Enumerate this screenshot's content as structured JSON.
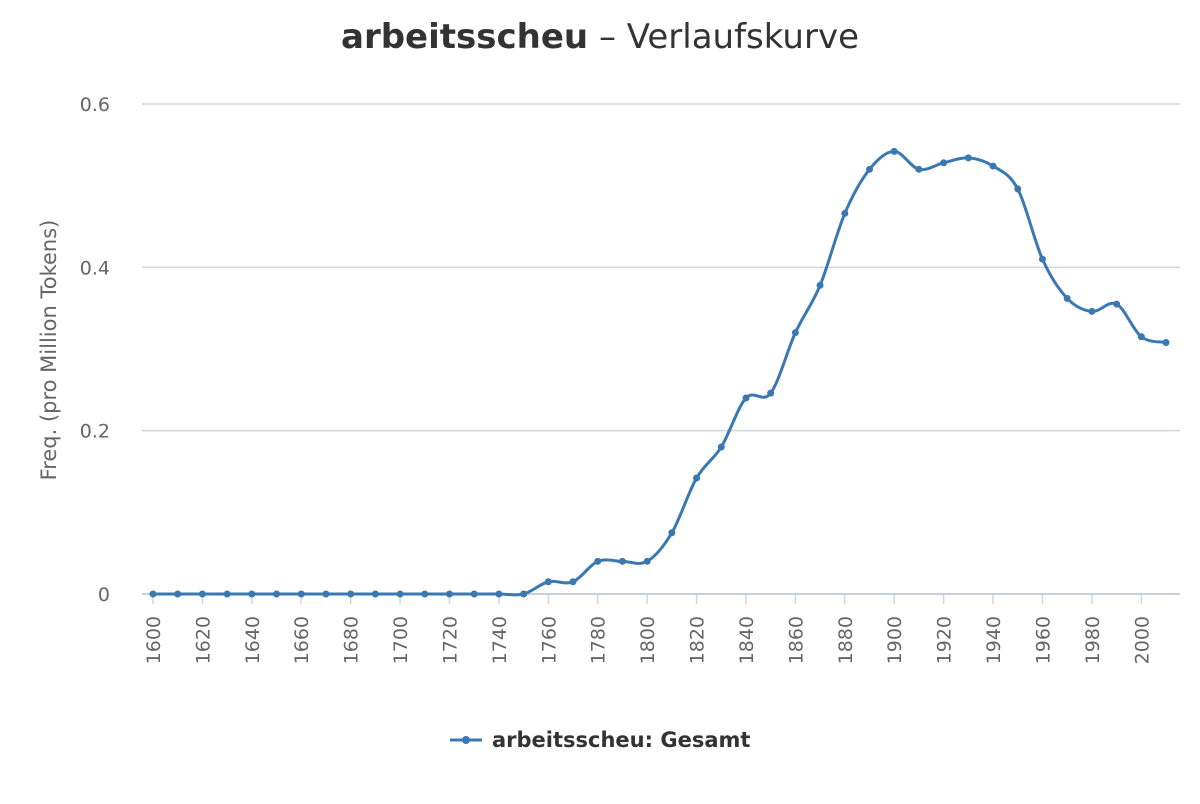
{
  "chart_data": {
    "type": "line",
    "title": {
      "term": "arbeitsscheu",
      "rest": "– Verlaufskurve"
    },
    "y_label": "Freq. (pro Million Tokens)",
    "x": [
      1600,
      1610,
      1620,
      1630,
      1640,
      1650,
      1660,
      1670,
      1680,
      1690,
      1700,
      1710,
      1720,
      1730,
      1740,
      1750,
      1760,
      1770,
      1780,
      1790,
      1800,
      1810,
      1820,
      1830,
      1840,
      1850,
      1860,
      1870,
      1880,
      1890,
      1900,
      1910,
      1920,
      1930,
      1940,
      1950,
      1960,
      1970,
      1980,
      1990,
      2000,
      2010
    ],
    "series": [
      {
        "name": "arbeitsscheu: Gesamt",
        "color": "#3a78b2",
        "values": [
          0,
          0,
          0,
          0,
          0,
          0,
          0,
          0,
          0,
          0,
          0,
          0,
          0,
          0,
          0,
          0,
          0.015,
          0.015,
          0.04,
          0.04,
          0.04,
          0.075,
          0.142,
          0.18,
          0.24,
          0.246,
          0.32,
          0.378,
          0.466,
          0.52,
          0.542,
          0.52,
          0.528,
          0.534,
          0.524,
          0.496,
          0.41,
          0.362,
          0.346,
          0.355,
          0.315,
          0.308
        ]
      }
    ],
    "xlim": [
      1600,
      2010
    ],
    "xticks": [
      1600,
      1620,
      1640,
      1660,
      1680,
      1700,
      1720,
      1740,
      1760,
      1780,
      1800,
      1820,
      1840,
      1860,
      1880,
      1900,
      1920,
      1940,
      1960,
      1980,
      2000
    ],
    "ylim": [
      0,
      0.6
    ],
    "yticks": [
      0,
      0.2,
      0.4,
      0.6
    ],
    "grid": true
  }
}
